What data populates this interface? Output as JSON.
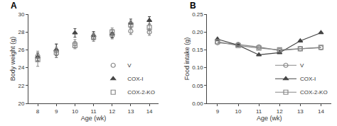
{
  "chart_data": [
    {
      "type": "scatter",
      "title": "A",
      "xlabel": "Age (wk)",
      "ylabel": "Body weight (g)",
      "x": [
        8,
        9,
        10,
        11,
        12,
        13,
        14
      ],
      "xlim": [
        7.5,
        14.5
      ],
      "ylim": [
        20,
        30
      ],
      "xticks": [
        8,
        9,
        10,
        11,
        12,
        13,
        14
      ],
      "yticks": [
        20,
        22,
        24,
        26,
        28,
        30
      ],
      "grid": false,
      "legend": "lower right",
      "series": [
        {
          "name": "V",
          "color": "#888888",
          "marker": "circle-open",
          "values": [
            25.3,
            25.9,
            26.7,
            27.5,
            27.6,
            28.1,
            28.0
          ],
          "yerr": [
            0.55,
            0.75,
            0.45,
            0.4,
            0.38,
            0.38,
            0.38
          ]
        },
        {
          "name": "COX-I",
          "color": "#444444",
          "marker": "triangle-up",
          "values": [
            25.2,
            26.0,
            27.9,
            27.6,
            27.8,
            29.0,
            29.3
          ],
          "yerr": [
            0.45,
            0.65,
            0.48,
            0.45,
            0.45,
            0.45,
            0.42
          ]
        },
        {
          "name": "COX-2-KO",
          "color": "#888888",
          "marker": "square-open",
          "values": [
            24.9,
            25.7,
            26.5,
            27.4,
            28.0,
            28.8,
            28.5
          ],
          "yerr": [
            0.75,
            0.58,
            0.38,
            0.45,
            0.45,
            0.45,
            0.38
          ]
        }
      ]
    },
    {
      "type": "line",
      "title": "B",
      "xlabel": "Age (wk)",
      "ylabel": "Food intake (g)",
      "x": [
        9,
        10,
        11,
        12,
        13,
        14
      ],
      "xlim": [
        8.5,
        14.5
      ],
      "ylim": [
        0.0,
        0.25
      ],
      "xticks": [
        9,
        10,
        11,
        12,
        13,
        14
      ],
      "yticks": [
        {
          "value": 0,
          "label": "0.00"
        },
        0.05,
        {
          "value": 0.1,
          "label": "0.10"
        },
        0.15,
        {
          "value": 0.2,
          "label": "0.20"
        },
        0.25
      ],
      "grid": false,
      "legend": "lower right",
      "series": [
        {
          "name": "V",
          "color": "#888888",
          "marker": "circle-open",
          "values": [
            0.17,
            0.165,
            0.158,
            0.148,
            0.153,
            0.156
          ]
        },
        {
          "name": "COX-I",
          "color": "#444444",
          "marker": "triangle-up",
          "values": [
            0.18,
            0.163,
            0.136,
            0.142,
            0.175,
            0.198
          ]
        },
        {
          "name": "COX-2-KO",
          "color": "#888888",
          "marker": "square-open",
          "values": [
            0.173,
            0.162,
            0.155,
            0.15,
            0.153,
            0.157
          ]
        }
      ]
    }
  ]
}
